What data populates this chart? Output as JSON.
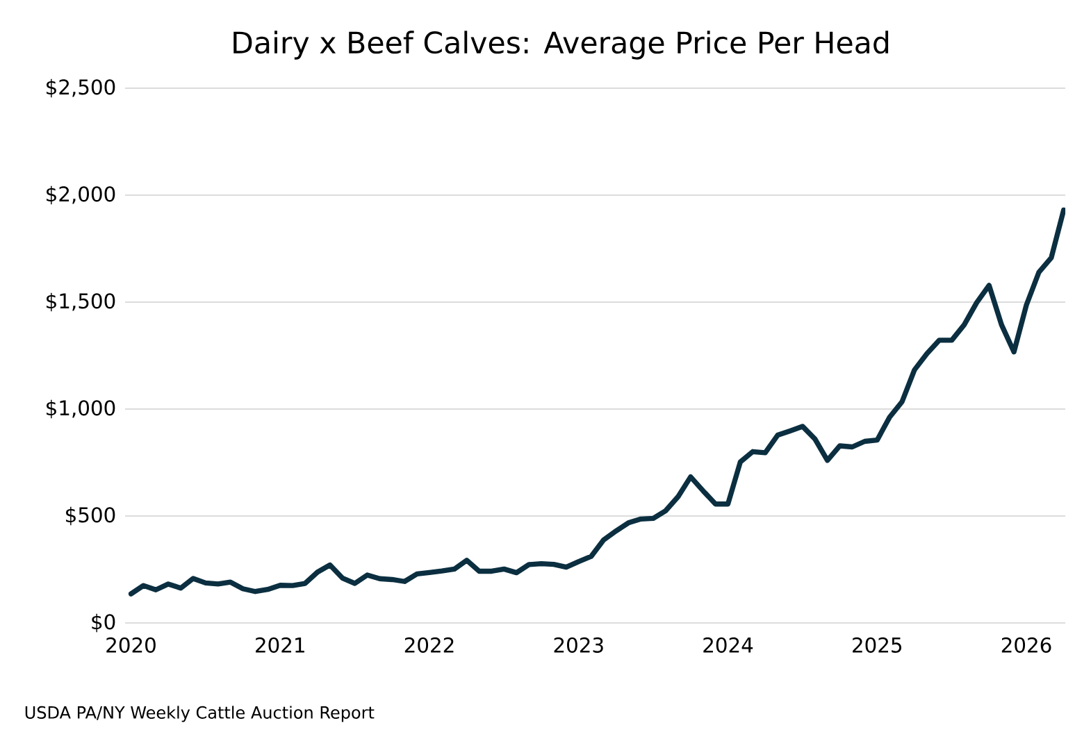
{
  "chart_data": {
    "type": "line",
    "title": "Dairy x Beef Calves: Average Price Per Head",
    "x": [
      "2020-01",
      "2020-02",
      "2020-03",
      "2020-04",
      "2020-05",
      "2020-06",
      "2020-07",
      "2020-08",
      "2020-09",
      "2020-10",
      "2020-11",
      "2020-12",
      "2021-01",
      "2021-02",
      "2021-03",
      "2021-04",
      "2021-05",
      "2021-06",
      "2021-07",
      "2021-08",
      "2021-09",
      "2021-10",
      "2021-11",
      "2021-12",
      "2022-01",
      "2022-02",
      "2022-03",
      "2022-04",
      "2022-05",
      "2022-06",
      "2022-07",
      "2022-08",
      "2022-09",
      "2022-10",
      "2022-11",
      "2022-12",
      "2023-01",
      "2023-02",
      "2023-03",
      "2023-04",
      "2023-05",
      "2023-06",
      "2023-07",
      "2023-08",
      "2023-09",
      "2023-10",
      "2023-11",
      "2023-12",
      "2024-01",
      "2024-02",
      "2024-03",
      "2024-04",
      "2024-05",
      "2024-06",
      "2024-07",
      "2024-08",
      "2024-09",
      "2024-10",
      "2024-11",
      "2024-12",
      "2025-01",
      "2025-02",
      "2025-03",
      "2025-04",
      "2025-05",
      "2025-06",
      "2025-07",
      "2025-08",
      "2025-09",
      "2025-10",
      "2025-11",
      "2025-12",
      "2026-01",
      "2026-02",
      "2026-03",
      "2026-04"
    ],
    "values": [
      136,
      175,
      155,
      182,
      163,
      208,
      187,
      182,
      191,
      160,
      147,
      157,
      176,
      175,
      185,
      238,
      271,
      210,
      185,
      224,
      207,
      203,
      194,
      229,
      236,
      243,
      252,
      293,
      242,
      242,
      252,
      235,
      273,
      277,
      274,
      261,
      287,
      311,
      388,
      430,
      468,
      486,
      489,
      525,
      591,
      683,
      618,
      556,
      556,
      753,
      801,
      796,
      878,
      898,
      919,
      860,
      760,
      828,
      823,
      849,
      855,
      962,
      1034,
      1183,
      1259,
      1322,
      1322,
      1394,
      1497,
      1578,
      1394,
      1267,
      1486,
      1639,
      1707,
      1931
    ],
    "color": "#0b2f40",
    "xlim": [
      "2019-12-17",
      "2026-04-05"
    ],
    "xticks": [
      {
        "value": "2020-01",
        "label": "2020"
      },
      {
        "value": "2021-01",
        "label": "2021"
      },
      {
        "value": "2022-01",
        "label": "2022"
      },
      {
        "value": "2023-01",
        "label": "2023"
      },
      {
        "value": "2024-01",
        "label": "2024"
      },
      {
        "value": "2025-01",
        "label": "2025"
      },
      {
        "value": "2026-01",
        "label": "2026"
      }
    ],
    "ylim": [
      0,
      2500
    ],
    "yticks": [
      {
        "value": 0,
        "label": "$0"
      },
      {
        "value": 500,
        "label": "$500"
      },
      {
        "value": 1000,
        "label": "$1,000"
      },
      {
        "value": 1500,
        "label": "$1,500"
      },
      {
        "value": 2000,
        "label": "$2,000"
      },
      {
        "value": 2500,
        "label": "$2,500"
      }
    ],
    "grid": "y",
    "annotations": [
      "USDA PA/NY Weekly Cattle Auction Report"
    ]
  }
}
